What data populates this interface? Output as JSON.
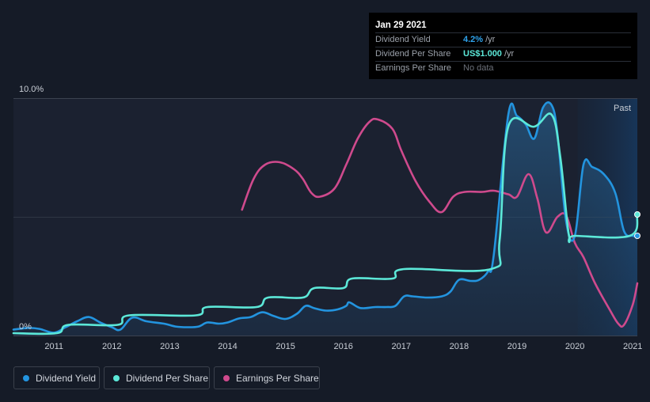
{
  "chart_data": {
    "type": "line",
    "y_top_label": "10.0%",
    "y_bottom_label": "0%",
    "ylim": [
      0,
      10
    ],
    "x_range": [
      2010.3,
      2021.08
    ],
    "x_ticks": [
      "2011",
      "2012",
      "2013",
      "2014",
      "2015",
      "2016",
      "2017",
      "2018",
      "2019",
      "2020",
      "2021"
    ],
    "past_label": "Past",
    "forecast_start": 2020.05,
    "series": [
      {
        "name": "Dividend Yield",
        "color": "#2394df",
        "points": [
          [
            2010.3,
            0.25
          ],
          [
            2010.55,
            0.32
          ],
          [
            2010.75,
            0.28
          ],
          [
            2011.0,
            0.12
          ],
          [
            2011.2,
            0.35
          ],
          [
            2011.4,
            0.6
          ],
          [
            2011.6,
            0.78
          ],
          [
            2011.8,
            0.55
          ],
          [
            2012.0,
            0.35
          ],
          [
            2012.15,
            0.25
          ],
          [
            2012.35,
            0.75
          ],
          [
            2012.6,
            0.6
          ],
          [
            2012.9,
            0.5
          ],
          [
            2013.1,
            0.38
          ],
          [
            2013.3,
            0.35
          ],
          [
            2013.5,
            0.38
          ],
          [
            2013.65,
            0.55
          ],
          [
            2013.85,
            0.5
          ],
          [
            2014.0,
            0.55
          ],
          [
            2014.2,
            0.72
          ],
          [
            2014.4,
            0.78
          ],
          [
            2014.6,
            0.98
          ],
          [
            2014.8,
            0.82
          ],
          [
            2015.0,
            0.7
          ],
          [
            2015.2,
            0.92
          ],
          [
            2015.35,
            1.25
          ],
          [
            2015.5,
            1.15
          ],
          [
            2015.7,
            1.05
          ],
          [
            2015.9,
            1.1
          ],
          [
            2016.05,
            1.25
          ],
          [
            2016.1,
            1.4
          ],
          [
            2016.25,
            1.2
          ],
          [
            2016.35,
            1.15
          ],
          [
            2016.55,
            1.2
          ],
          [
            2016.75,
            1.2
          ],
          [
            2016.9,
            1.25
          ],
          [
            2017.05,
            1.65
          ],
          [
            2017.2,
            1.65
          ],
          [
            2017.45,
            1.6
          ],
          [
            2017.7,
            1.65
          ],
          [
            2017.85,
            1.85
          ],
          [
            2018.0,
            2.35
          ],
          [
            2018.2,
            2.3
          ],
          [
            2018.35,
            2.35
          ],
          [
            2018.5,
            2.7
          ],
          [
            2018.6,
            3.4
          ],
          [
            2018.85,
            9.3
          ],
          [
            2019.0,
            9.25
          ],
          [
            2019.15,
            8.9
          ],
          [
            2019.3,
            8.3
          ],
          [
            2019.45,
            9.6
          ],
          [
            2019.6,
            9.7
          ],
          [
            2019.7,
            8.5
          ],
          [
            2019.85,
            4.8
          ],
          [
            2020.0,
            4.2
          ],
          [
            2020.15,
            7.2
          ],
          [
            2020.3,
            7.1
          ],
          [
            2020.5,
            6.8
          ],
          [
            2020.7,
            6.0
          ],
          [
            2020.85,
            4.4
          ],
          [
            2021.0,
            4.2
          ],
          [
            2021.08,
            4.2
          ]
        ]
      },
      {
        "name": "Dividend Per Share",
        "color": "#5ce8d8",
        "points": [
          [
            2010.3,
            0.1
          ],
          [
            2011.05,
            0.1
          ],
          [
            2011.25,
            0.45
          ],
          [
            2012.1,
            0.45
          ],
          [
            2012.3,
            0.85
          ],
          [
            2013.45,
            0.85
          ],
          [
            2013.65,
            1.2
          ],
          [
            2014.5,
            1.2
          ],
          [
            2014.7,
            1.6
          ],
          [
            2015.3,
            1.6
          ],
          [
            2015.5,
            2.0
          ],
          [
            2016.0,
            2.0
          ],
          [
            2016.15,
            2.4
          ],
          [
            2016.85,
            2.4
          ],
          [
            2017.05,
            2.8
          ],
          [
            2018.55,
            2.8
          ],
          [
            2018.7,
            4.0
          ],
          [
            2018.85,
            8.8
          ],
          [
            2019.3,
            8.8
          ],
          [
            2019.6,
            9.3
          ],
          [
            2019.75,
            7.5
          ],
          [
            2019.9,
            4.2
          ],
          [
            2020.0,
            4.2
          ],
          [
            2020.95,
            4.2
          ],
          [
            2021.08,
            5.1
          ]
        ]
      },
      {
        "name": "Earnings Per Share",
        "color": "#cf4a8d",
        "points": [
          [
            2014.25,
            5.3
          ],
          [
            2014.45,
            6.6
          ],
          [
            2014.65,
            7.2
          ],
          [
            2014.9,
            7.3
          ],
          [
            2015.15,
            7.0
          ],
          [
            2015.3,
            6.6
          ],
          [
            2015.45,
            6.0
          ],
          [
            2015.6,
            5.85
          ],
          [
            2015.85,
            6.2
          ],
          [
            2016.05,
            7.2
          ],
          [
            2016.25,
            8.3
          ],
          [
            2016.45,
            9.0
          ],
          [
            2016.6,
            9.1
          ],
          [
            2016.85,
            8.7
          ],
          [
            2017.0,
            7.8
          ],
          [
            2017.25,
            6.5
          ],
          [
            2017.5,
            5.6
          ],
          [
            2017.7,
            5.2
          ],
          [
            2017.9,
            5.85
          ],
          [
            2018.1,
            6.05
          ],
          [
            2018.4,
            6.05
          ],
          [
            2018.6,
            6.1
          ],
          [
            2018.85,
            5.95
          ],
          [
            2019.0,
            5.85
          ],
          [
            2019.2,
            6.8
          ],
          [
            2019.35,
            5.8
          ],
          [
            2019.5,
            4.35
          ],
          [
            2019.7,
            5.0
          ],
          [
            2019.85,
            5.05
          ],
          [
            2020.0,
            3.9
          ],
          [
            2020.15,
            3.3
          ],
          [
            2020.35,
            2.2
          ],
          [
            2020.6,
            1.1
          ],
          [
            2020.75,
            0.5
          ],
          [
            2020.85,
            0.45
          ],
          [
            2021.0,
            1.3
          ],
          [
            2021.08,
            2.2
          ]
        ]
      }
    ]
  },
  "tooltip": {
    "date": "Jan 29 2021",
    "rows": [
      {
        "label": "Dividend Yield",
        "value": "4.2%",
        "unit": "/yr"
      },
      {
        "label": "Dividend Per Share",
        "value": "US$1.000",
        "unit": "/yr"
      },
      {
        "label": "Earnings Per Share",
        "value": "No data"
      }
    ]
  },
  "legend": [
    {
      "label": "Dividend Yield",
      "color": "#2394df"
    },
    {
      "label": "Dividend Per Share",
      "color": "#5ce8d8"
    },
    {
      "label": "Earnings Per Share",
      "color": "#cf4a8d"
    }
  ]
}
